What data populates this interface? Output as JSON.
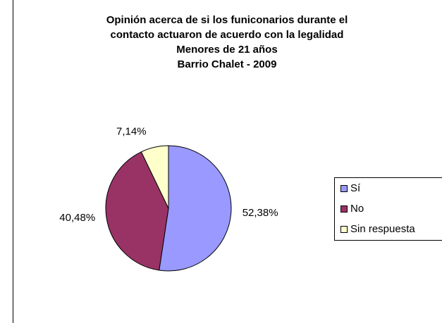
{
  "chart_data": {
    "type": "pie",
    "title": [
      "Opinión acerca de si los funiconarios durante el",
      "contacto actuaron de acuerdo con la legalidad",
      "Menores de 21 años",
      "Barrio Chalet - 2009"
    ],
    "categories": [
      "Sí",
      "No",
      "Sin respuesta"
    ],
    "values": [
      52.38,
      40.48,
      7.14
    ],
    "value_labels": [
      "52,38%",
      "40,48%",
      "7,14%"
    ],
    "colors": [
      "#9999ff",
      "#993366",
      "#ffffcc"
    ],
    "legend": "right"
  }
}
